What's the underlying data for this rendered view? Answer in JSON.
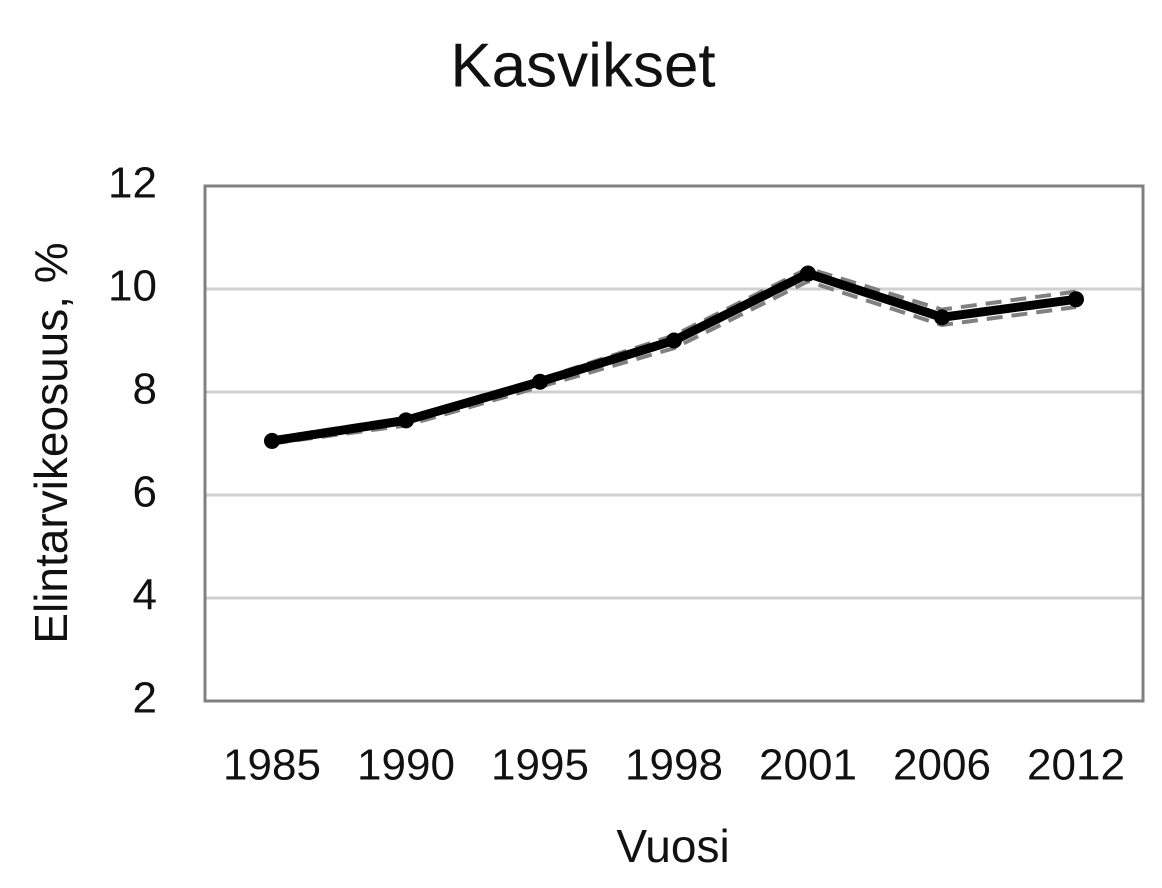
{
  "chart_data": {
    "type": "line",
    "title": "Kasvikset",
    "x_label": "Vuosi",
    "y_label": "Elintarvikeosuus, %",
    "categories": [
      "1985",
      "1990",
      "1995",
      "1998",
      "2001",
      "2006",
      "2012"
    ],
    "series": [
      {
        "color": "#000000",
        "style": "solid",
        "markers": true,
        "values": [
          7.05,
          7.45,
          8.2,
          9.0,
          10.3,
          9.45,
          9.8
        ]
      },
      {
        "color": "#808080",
        "style": "dashed",
        "markers": false,
        "values": [
          7.1,
          7.5,
          8.25,
          9.1,
          10.4,
          9.6,
          9.95
        ]
      },
      {
        "color": "#808080",
        "style": "dashed",
        "markers": false,
        "values": [
          7.0,
          7.35,
          8.1,
          8.85,
          10.15,
          9.3,
          9.65
        ]
      }
    ],
    "ylim": [
      2,
      12
    ],
    "yticks": [
      2,
      4,
      6,
      8,
      10,
      12
    ],
    "grid": true
  }
}
